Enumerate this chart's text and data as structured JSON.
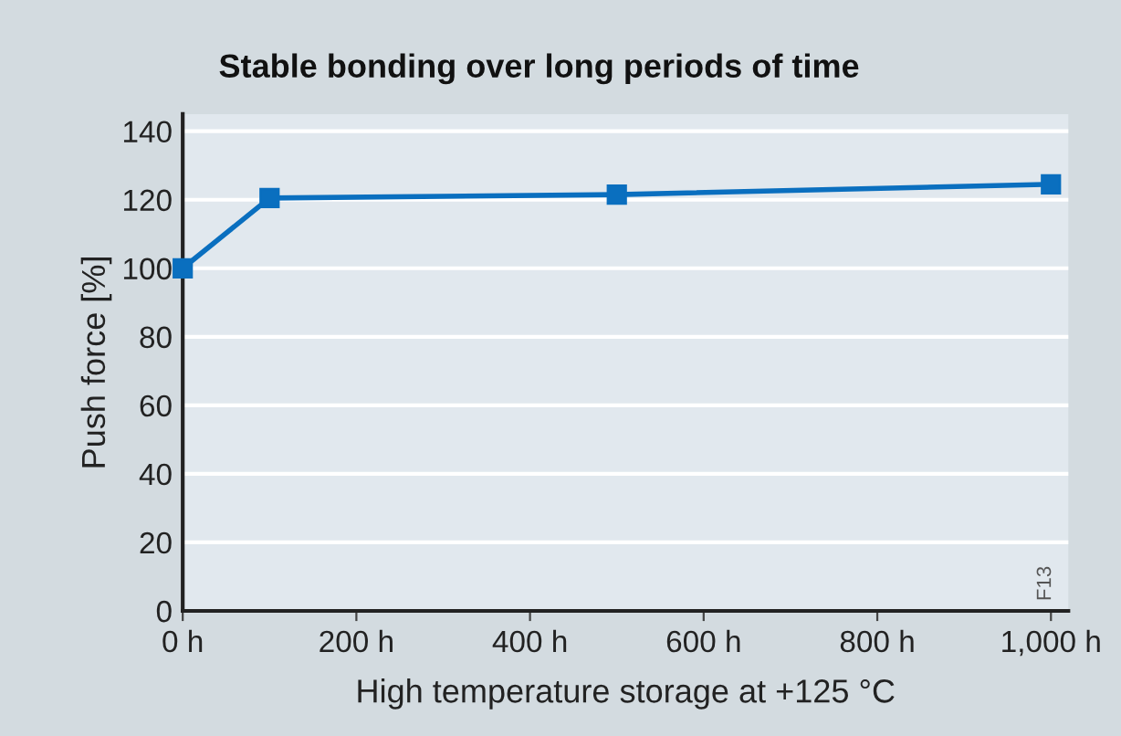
{
  "chart_data": {
    "type": "line",
    "title": "Stable bonding over long periods of time",
    "xlabel": "High temperature storage at +125 °C",
    "ylabel": "Push force [%]",
    "x": [
      0,
      100,
      500,
      1000
    ],
    "series": [
      {
        "color": "#0a6fbf",
        "values": [
          100,
          120.5,
          121.5,
          124.5
        ]
      }
    ],
    "xlim": [
      0,
      1020
    ],
    "xticks": [
      {
        "value": 0,
        "label": "0 h"
      },
      {
        "value": 200,
        "label": "200 h"
      },
      {
        "value": 400,
        "label": "400 h"
      },
      {
        "value": 600,
        "label": "600 h"
      },
      {
        "value": 800,
        "label": "800 h"
      },
      {
        "value": 1000,
        "label": "1,000 h"
      }
    ],
    "ylim": [
      0,
      145
    ],
    "yticks": [
      0,
      20,
      40,
      60,
      80,
      100,
      120,
      140
    ],
    "grid": "y",
    "marker": "square",
    "line_style": "solid",
    "annotations": [
      "F13"
    ]
  }
}
